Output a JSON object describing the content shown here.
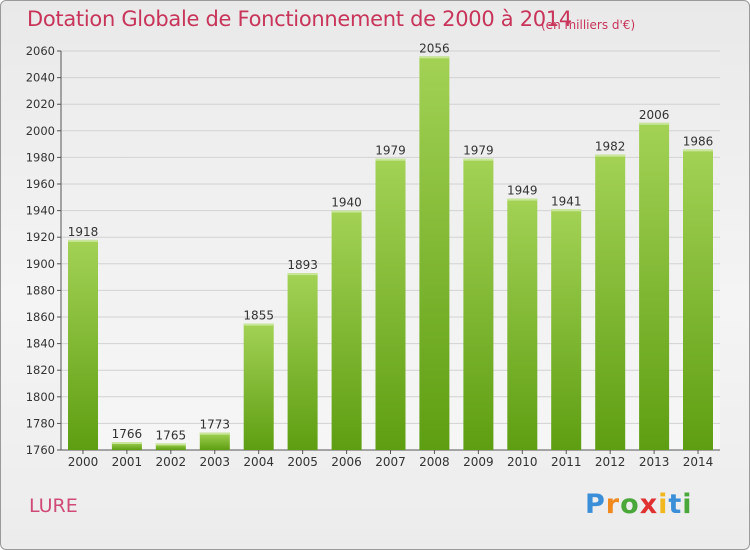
{
  "header": {
    "title": "Dotation Globale de Fonctionnement de 2000 à 2014",
    "unit": "(en milliers d'€)"
  },
  "footer": {
    "commune": "LURE",
    "logo": "Proxiti"
  },
  "colors": {
    "title": "#c8345a",
    "bar_light": "#a3d255",
    "bar_dark": "#5e9e12"
  },
  "chart_data": {
    "type": "bar",
    "title": "Dotation Globale de Fonctionnement de 2000 à 2014",
    "xlabel": "",
    "ylabel": "",
    "categories": [
      "2000",
      "2001",
      "2002",
      "2003",
      "2004",
      "2005",
      "2006",
      "2007",
      "2008",
      "2009",
      "2010",
      "2011",
      "2012",
      "2013",
      "2014"
    ],
    "values": [
      1918,
      1766,
      1765,
      1773,
      1855,
      1893,
      1940,
      1979,
      2056,
      1979,
      1949,
      1941,
      1982,
      2006,
      1986
    ],
    "ylim": [
      1760,
      2060
    ],
    "yticks": [
      1760,
      1780,
      1800,
      1820,
      1840,
      1860,
      1880,
      1900,
      1920,
      1940,
      1960,
      1980,
      2000,
      2020,
      2040,
      2060
    ],
    "grid": true,
    "data_labels": true
  }
}
